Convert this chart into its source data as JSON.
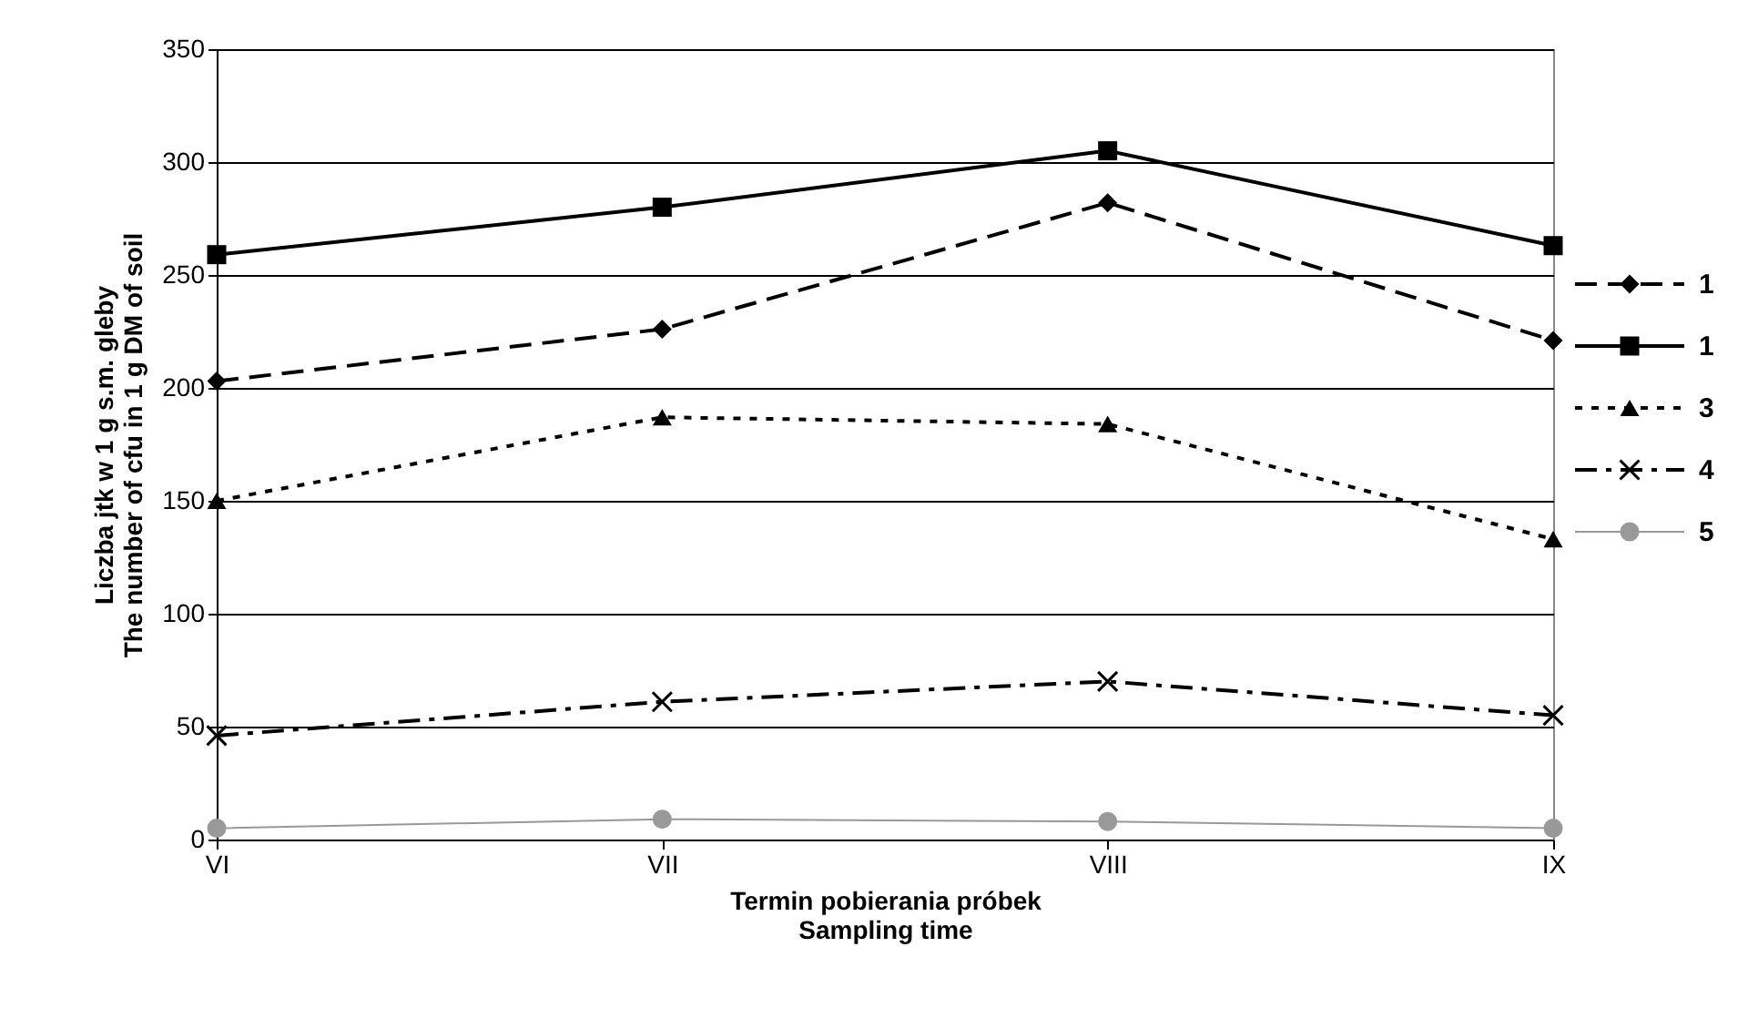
{
  "chart_data": {
    "type": "line",
    "xlabel": "Termin pobierania próbek\nSampling time",
    "ylabel": "Liczba jtk w 1 g s.m. gleby\nThe number of cfu in 1 g DM of soil",
    "categories": [
      "VI",
      "VII",
      "VIII",
      "IX"
    ],
    "ylim": [
      0,
      350
    ],
    "yticks": [
      0,
      50,
      100,
      150,
      200,
      250,
      300,
      350
    ],
    "grid": "y",
    "legend": "right",
    "series": [
      {
        "name": "1",
        "color": "#000000",
        "marker": "diamond",
        "line_style": "dashed",
        "values": [
          203,
          226,
          282,
          221
        ]
      },
      {
        "name": "1",
        "color": "#000000",
        "marker": "square",
        "line_style": "solid",
        "values": [
          259,
          280,
          305,
          263
        ]
      },
      {
        "name": "3",
        "color": "#000000",
        "marker": "triangle",
        "line_style": "dotted",
        "values": [
          150,
          187,
          184,
          133
        ]
      },
      {
        "name": "4",
        "color": "#000000",
        "marker": "cross",
        "line_style": "dashdot",
        "values": [
          46,
          61,
          70,
          55
        ]
      },
      {
        "name": "5",
        "color": "#999999",
        "marker": "circle",
        "line_style": "solid",
        "values": [
          5,
          9,
          8,
          5
        ]
      }
    ]
  }
}
